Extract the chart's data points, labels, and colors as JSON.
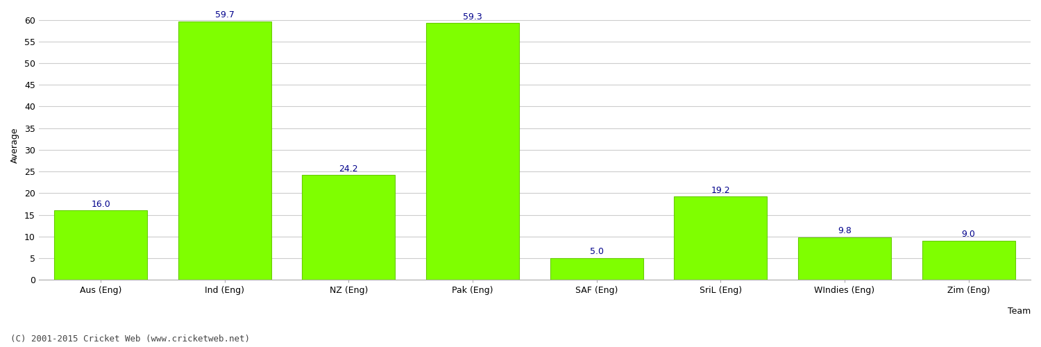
{
  "categories": [
    "Aus (Eng)",
    "Ind (Eng)",
    "NZ (Eng)",
    "Pak (Eng)",
    "SAF (Eng)",
    "SriL (Eng)",
    "WIndies (Eng)",
    "Zim (Eng)"
  ],
  "values": [
    16.0,
    59.7,
    24.2,
    59.3,
    5.0,
    19.2,
    9.8,
    9.0
  ],
  "bar_color": "#7fff00",
  "bar_edge_color": "#66cc00",
  "label_color": "#00008b",
  "ylabel": "Average",
  "xlabel": "Team",
  "ylim": [
    0,
    62
  ],
  "yticks": [
    0,
    5,
    10,
    15,
    20,
    25,
    30,
    35,
    40,
    45,
    50,
    55,
    60
  ],
  "background_color": "#ffffff",
  "grid_color": "#cccccc",
  "footer": "(C) 2001-2015 Cricket Web (www.cricketweb.net)",
  "label_fontsize": 9,
  "axis_fontsize": 9,
  "footer_fontsize": 9,
  "bar_width": 0.75
}
